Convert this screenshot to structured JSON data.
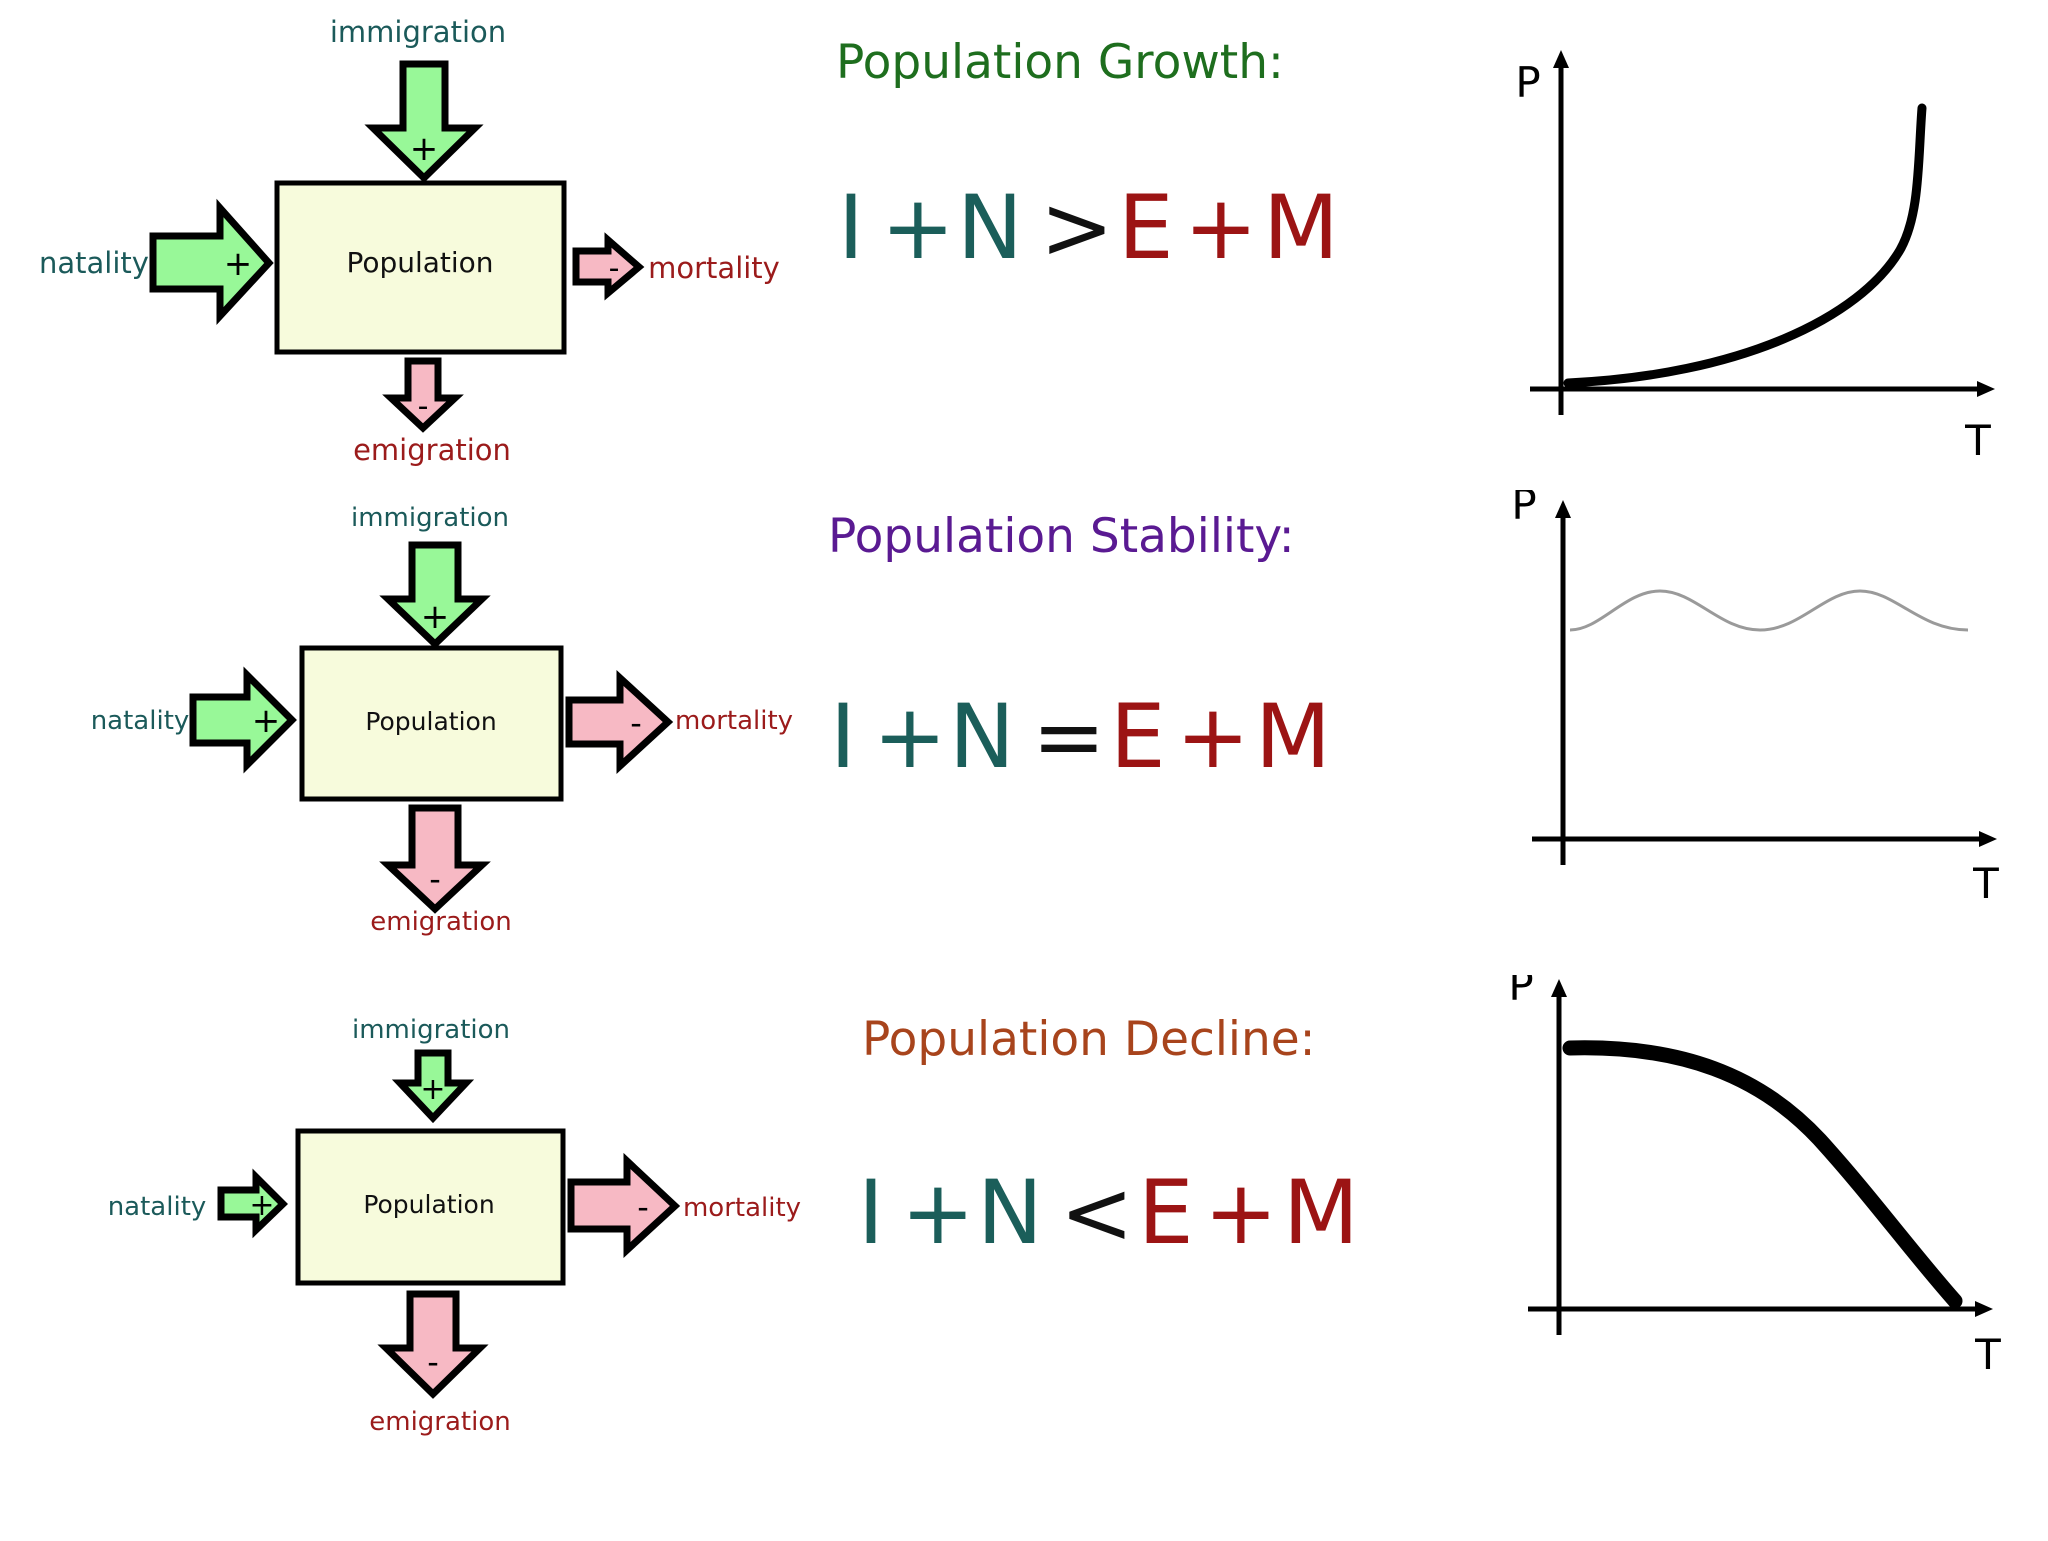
{
  "colors": {
    "inflow_fill": "#98f898",
    "outflow_fill": "#f7b9c4",
    "box_fill": "#f7fbdc",
    "label_teal": "#1b5a5a",
    "label_red": "#9b1b1b",
    "eq_teal": "#1b5e5a",
    "eq_red": "#9c1414",
    "stroke": "#000000",
    "stable_line": "#9a9a9a"
  },
  "panels": [
    {
      "title": "Population Growth:",
      "title_color": "#1e6e1e",
      "box_label": "Population",
      "labels": {
        "immigration": "immigration",
        "natality": "natality",
        "mortality": "mortality",
        "emigration": "emigration"
      },
      "signs": {
        "immigration": "+",
        "natality": "+",
        "mortality": "-",
        "emigration": "-"
      },
      "equation": {
        "I": "I",
        "plus1": "+",
        "N": "N",
        "op": ">",
        "E": "E",
        "plus2": "+",
        "M": "M"
      },
      "axes": {
        "y": "P",
        "x": "T"
      },
      "trend": "growth"
    },
    {
      "title": "Population Stability:",
      "title_color": "#5a1a92",
      "box_label": "Population",
      "labels": {
        "immigration": "immigration",
        "natality": "natality",
        "mortality": "mortality",
        "emigration": "emigration"
      },
      "signs": {
        "immigration": "+",
        "natality": "+",
        "mortality": "-",
        "emigration": "-"
      },
      "equation": {
        "I": "I",
        "plus1": "+",
        "N": "N",
        "op": "=",
        "E": "E",
        "plus2": "+",
        "M": "M"
      },
      "axes": {
        "y": "P",
        "x": "T"
      },
      "trend": "stability"
    },
    {
      "title": "Population Decline:",
      "title_color": "#a8441c",
      "box_label": "Population",
      "labels": {
        "immigration": "immigration",
        "natality": "natality",
        "mortality": "mortality",
        "emigration": "emigration"
      },
      "signs": {
        "immigration": "+",
        "natality": "+",
        "mortality": "-",
        "emigration": "-"
      },
      "equation": {
        "I": "I",
        "plus1": "+",
        "N": "N",
        "op": "<",
        "E": "E",
        "plus2": "+",
        "M": "M"
      },
      "axes": {
        "y": "P",
        "x": "T"
      },
      "trend": "decline"
    }
  ]
}
